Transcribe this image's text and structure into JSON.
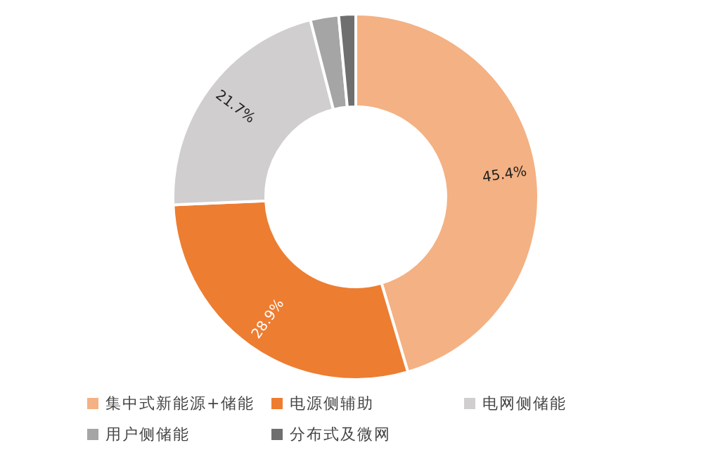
{
  "chart_data": {
    "type": "donut",
    "categories": [
      "集中式新能源+储能",
      "电源侧辅助",
      "电网侧储能",
      "用户侧储能",
      "分布式及微网"
    ],
    "values": [
      45.4,
      28.9,
      21.7,
      2.5,
      1.5
    ],
    "colors": [
      "#f4b183",
      "#ed7d31",
      "#d0cece",
      "#a5a5a5",
      "#6f6f6f"
    ],
    "value_labels": [
      "45.4%",
      "28.9%",
      "21.7%",
      null,
      null
    ],
    "legend": "bottom"
  }
}
